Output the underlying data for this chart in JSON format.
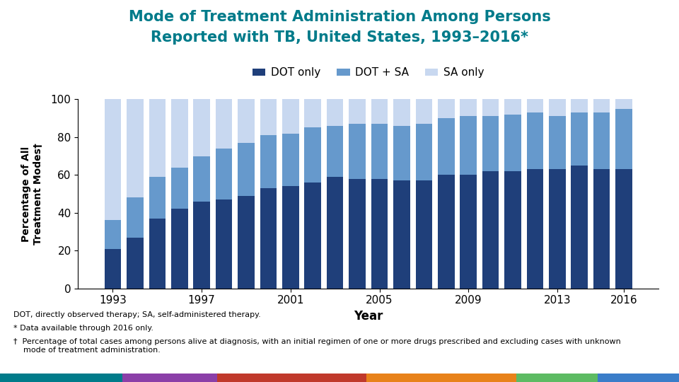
{
  "title_line1": "Mode of Treatment Administration Among Persons",
  "title_line2": "Reported with TB, United States, 1993–2016*",
  "title_color": "#007B8A",
  "xlabel": "Year",
  "ylabel": "Percentage of All\nTreatment Modes†",
  "years": [
    1993,
    1994,
    1995,
    1996,
    1997,
    1998,
    1999,
    2000,
    2001,
    2002,
    2003,
    2004,
    2005,
    2006,
    2007,
    2008,
    2009,
    2010,
    2011,
    2012,
    2013,
    2014,
    2015,
    2016
  ],
  "dot_only": [
    21,
    27,
    37,
    42,
    46,
    47,
    49,
    53,
    54,
    56,
    59,
    58,
    58,
    57,
    57,
    60,
    60,
    62,
    62,
    63,
    63,
    65,
    63,
    63
  ],
  "dot_sa": [
    15,
    21,
    22,
    22,
    24,
    27,
    28,
    28,
    28,
    29,
    27,
    29,
    29,
    29,
    30,
    30,
    31,
    29,
    30,
    30,
    28,
    28,
    30,
    32
  ],
  "sa_only": [
    64,
    52,
    41,
    36,
    30,
    26,
    23,
    19,
    18,
    15,
    14,
    13,
    13,
    14,
    13,
    10,
    9,
    9,
    8,
    7,
    9,
    7,
    7,
    5
  ],
  "color_dot_only": "#1F3F7A",
  "color_dot_sa": "#6699CC",
  "color_sa_only": "#C8D8F0",
  "legend_labels": [
    "DOT only",
    "DOT + SA",
    "SA only"
  ],
  "ylim": [
    0,
    100
  ],
  "footnote1": "DOT, directly observed therapy; SA, self-administered therapy.",
  "footnote2": "* Data available through 2016 only.",
  "footnote3": "†  Percentage of total cases among persons alive at diagnosis, with an initial regimen of one or more drugs prescribed and excluding cases with unknown\n    mode of treatment administration.",
  "bar_width": 0.75,
  "bottom_bar_colors": [
    "#007B8A",
    "#8B3FA8",
    "#C0392B",
    "#E8821A",
    "#5DBB63",
    "#3A7DC9"
  ],
  "bottom_bar_widths": [
    0.18,
    0.14,
    0.22,
    0.22,
    0.12,
    0.12
  ]
}
